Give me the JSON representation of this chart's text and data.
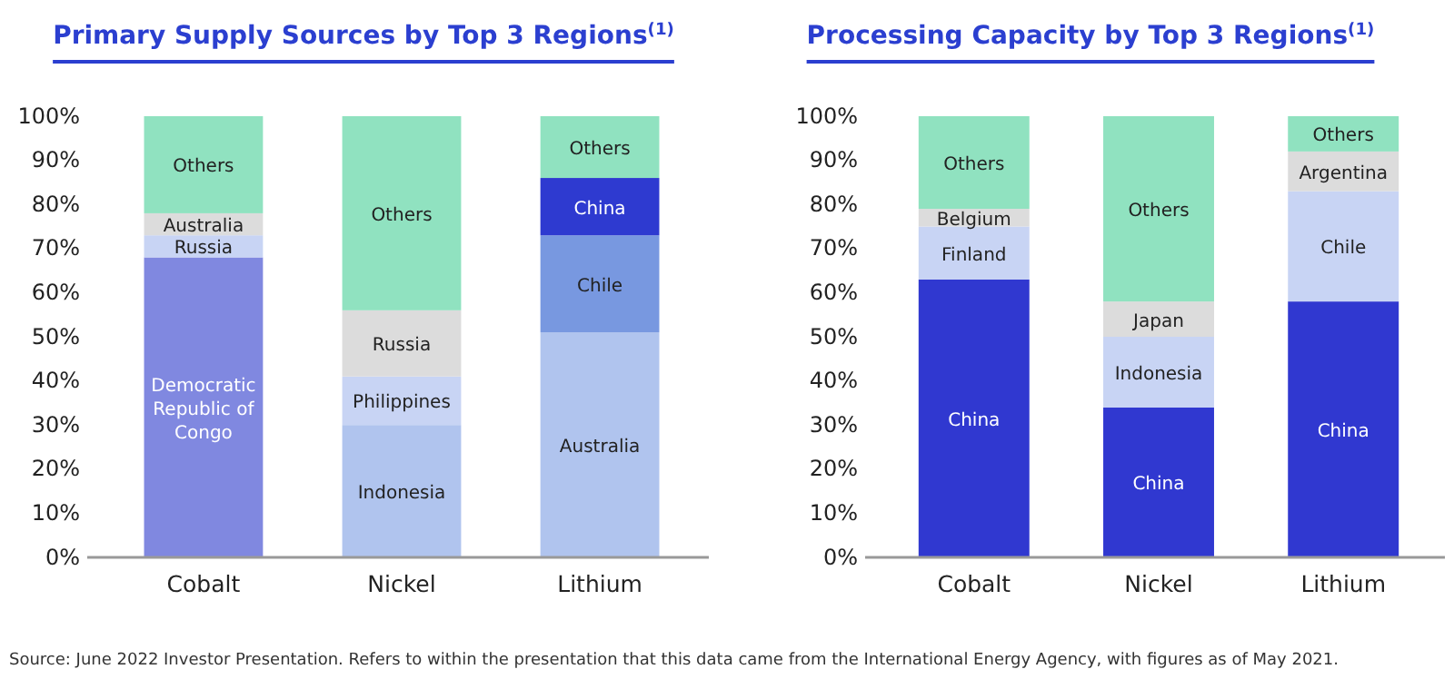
{
  "chart_data": [
    {
      "type": "bar",
      "title": "Primary Supply Sources by Top 3 Regions$^{(1)}$",
      "categories": [
        "Cobalt",
        "Nickel",
        "Lithium"
      ],
      "stacked": true,
      "ylim": [
        0,
        100
      ],
      "yticks": [
        {
          "value": 0,
          "label": "0%"
        },
        {
          "value": 10,
          "label": "10%"
        },
        {
          "value": 20,
          "label": "20%"
        },
        {
          "value": 30,
          "label": "30%"
        },
        {
          "value": 40,
          "label": "40%"
        },
        {
          "value": 50,
          "label": "50%"
        },
        {
          "value": 60,
          "label": "60%"
        },
        {
          "value": 70,
          "label": "70%"
        },
        {
          "value": 80,
          "label": "80%"
        },
        {
          "value": 90,
          "label": "90%"
        },
        {
          "value": 100,
          "label": "100%"
        }
      ],
      "grid": false,
      "series": [
        {
          "values": [
            68,
            30,
            51
          ],
          "colors": [
            "#8088e0",
            "#b0c4ee",
            "#b0c4ee"
          ],
          "value_labels": [
            "Democratic Republic of Congo",
            "Indonesia",
            "Australia"
          ]
        },
        {
          "values": [
            5,
            11,
            22
          ],
          "colors": [
            "#c8d4f4",
            "#c8d4f4",
            "#7898e0"
          ],
          "value_labels": [
            "Russia",
            "Philippines",
            "Chile"
          ]
        },
        {
          "values": [
            5,
            15,
            13
          ],
          "colors": [
            "#dcdcdc",
            "#dcdcdc",
            "#2e3ad0"
          ],
          "value_labels": [
            "Australia",
            "Russia",
            "China"
          ]
        },
        {
          "values": [
            22,
            44,
            14
          ],
          "colors": [
            "#90e2c0",
            "#90e2c0",
            "#90e2c0"
          ],
          "value_labels": [
            "Others",
            "Others",
            "Others"
          ]
        }
      ]
    },
    {
      "type": "bar",
      "title": "Processing Capacity by Top 3 Regions$^{(1)}$",
      "categories": [
        "Cobalt",
        "Nickel",
        "Lithium"
      ],
      "stacked": true,
      "ylim": [
        0,
        100
      ],
      "yticks": [
        {
          "value": 0,
          "label": "0%"
        },
        {
          "value": 10,
          "label": "10%"
        },
        {
          "value": 20,
          "label": "20%"
        },
        {
          "value": 30,
          "label": "30%"
        },
        {
          "value": 40,
          "label": "40%"
        },
        {
          "value": 50,
          "label": "50%"
        },
        {
          "value": 60,
          "label": "60%"
        },
        {
          "value": 70,
          "label": "70%"
        },
        {
          "value": 80,
          "label": "80%"
        },
        {
          "value": 90,
          "label": "90%"
        },
        {
          "value": 100,
          "label": "100%"
        }
      ],
      "grid": false,
      "annotations": [
        "Source: June 2022 Investor Presentation. Refers to within the presentation that this data came from the International Energy Agency, with figures as of May 2021."
      ],
      "series": [
        {
          "values": [
            63,
            34,
            58
          ],
          "colors": [
            "#3038d0",
            "#3038d0",
            "#3038d0"
          ],
          "value_labels": [
            "China",
            "China",
            "China"
          ]
        },
        {
          "values": [
            12,
            16,
            25
          ],
          "colors": [
            "#c8d4f4",
            "#c8d4f4",
            "#c8d4f4"
          ],
          "value_labels": [
            "Finland",
            "Indonesia",
            "Chile"
          ]
        },
        {
          "values": [
            4,
            8,
            9
          ],
          "colors": [
            "#dcdcdc",
            "#dcdcdc",
            "#dcdcdc"
          ],
          "value_labels": [
            "Belgium",
            "Japan",
            "Argentina"
          ]
        },
        {
          "values": [
            21,
            42,
            8
          ],
          "colors": [
            "#90e2c0",
            "#90e2c0",
            "#90e2c0"
          ],
          "value_labels": [
            "Others",
            "Others",
            "Others"
          ]
        }
      ]
    }
  ]
}
